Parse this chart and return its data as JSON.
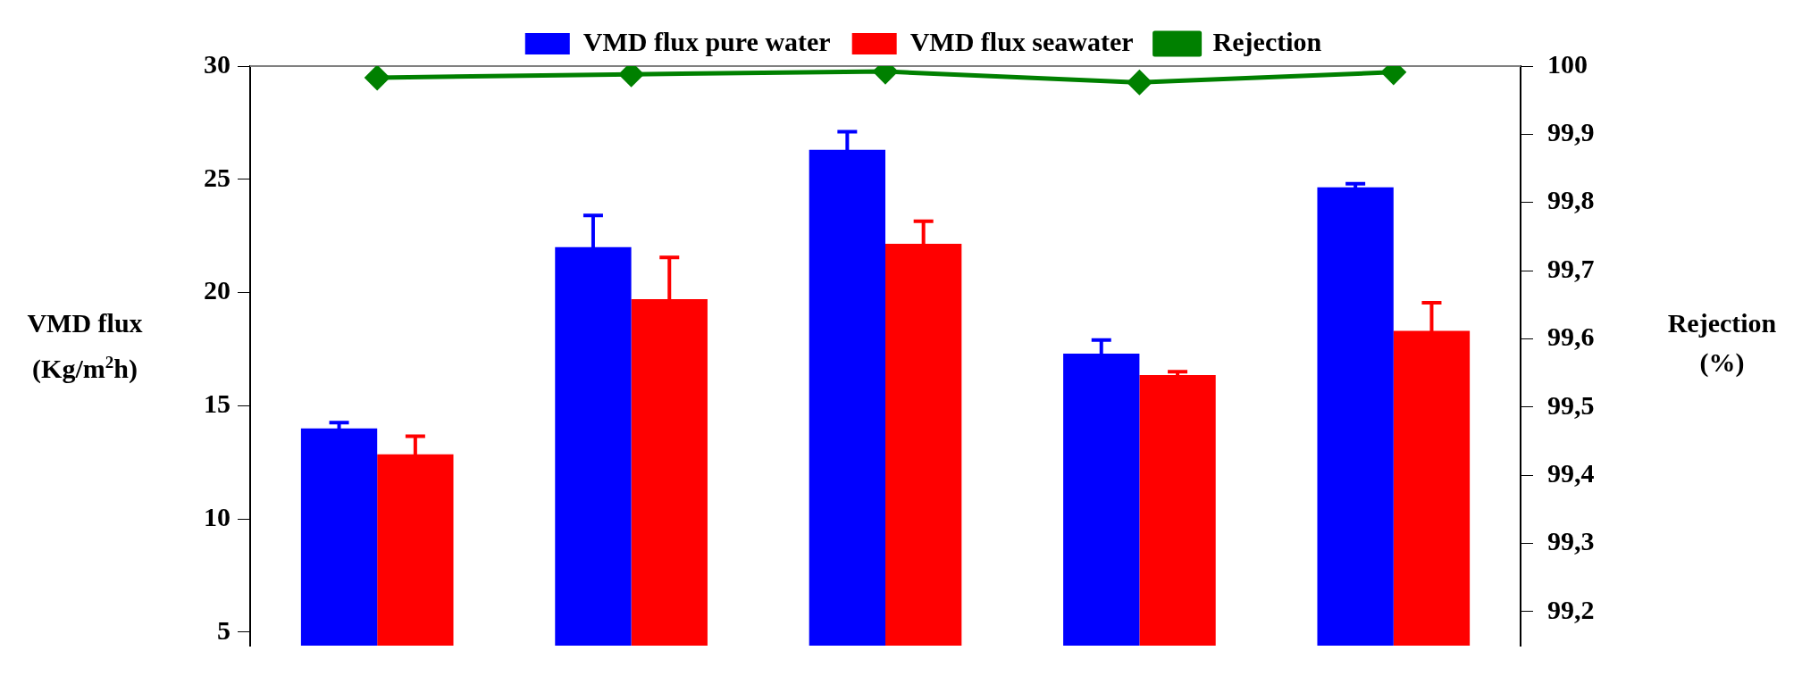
{
  "chart_data": {
    "type": "bar",
    "ylabel": "VMD flux (Kg/m$^{2}$h)",
    "y2label": "Rejection (%)",
    "categories": [
      null,
      null,
      null,
      null,
      null
    ],
    "series": [
      {
        "name": "VMD flux pure water",
        "color": "#0000ff",
        "values": [
          14.0,
          22.0,
          26.3,
          17.3,
          24.65
        ],
        "errors": [
          0.25,
          1.4,
          0.8,
          0.6,
          0.15
        ]
      },
      {
        "name": "VMD flux seawater",
        "color": "#ff0000",
        "values": [
          12.85,
          19.7,
          22.15,
          16.35,
          18.3
        ],
        "errors": [
          0.8,
          1.85,
          1.0,
          0.15,
          1.25
        ]
      },
      {
        "name": "Rejection",
        "type": "line",
        "axis": "y2",
        "color": "#008000",
        "values": [
          99.983,
          99.988,
          99.992,
          99.976,
          99.991
        ]
      }
    ],
    "ylim": [
      4.4,
      30
    ],
    "yticks": [
      5,
      10,
      15,
      20,
      25,
      30
    ],
    "y2lim": [
      99.15,
      100
    ],
    "y2ticks": [
      {
        "value": 99.2,
        "label": "99,2"
      },
      {
        "value": 99.3,
        "label": "99,3"
      },
      {
        "value": 99.4,
        "label": "99,4"
      },
      {
        "value": 99.5,
        "label": "99,5"
      },
      {
        "value": 99.6,
        "label": "99,6"
      },
      {
        "value": 99.7,
        "label": "99,7"
      },
      {
        "value": 99.8,
        "label": "99,8"
      },
      {
        "value": 99.9,
        "label": "99,9"
      },
      100
    ],
    "grid": false,
    "legend": "top",
    "marker": "diamond",
    "line_style": "solid",
    "tick_labels": "y"
  }
}
